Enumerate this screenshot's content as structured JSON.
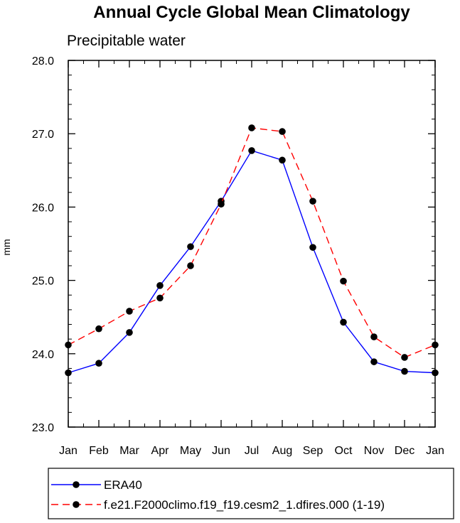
{
  "chart_data": {
    "type": "line",
    "title": "Annual Cycle Global Mean Climatology",
    "subtitle": "Precipitable water",
    "xlabel": "",
    "ylabel": "mm",
    "categories": [
      "Jan",
      "Feb",
      "Mar",
      "Apr",
      "May",
      "Jun",
      "Jul",
      "Aug",
      "Sep",
      "Oct",
      "Nov",
      "Dec",
      "Jan"
    ],
    "ylim": [
      23.0,
      28.0
    ],
    "yticks": [
      "23.0",
      "24.0",
      "25.0",
      "26.0",
      "27.0",
      "28.0"
    ],
    "grid": false,
    "legend_position": "bottom",
    "series": [
      {
        "name": "ERA40",
        "color": "#0000ff",
        "dash": "solid",
        "values": [
          23.74,
          23.87,
          24.29,
          24.93,
          25.46,
          26.08,
          26.77,
          26.64,
          25.45,
          24.43,
          23.89,
          23.76,
          23.74
        ]
      },
      {
        "name": "f.e21.F2000climo.f19_f19.cesm2_1.dfires.000 (1-19)",
        "color": "#ff0000",
        "dash": "dashed",
        "values": [
          24.12,
          24.34,
          24.58,
          24.76,
          25.2,
          26.04,
          27.08,
          27.03,
          26.08,
          24.99,
          24.23,
          23.95,
          24.12
        ]
      }
    ]
  }
}
